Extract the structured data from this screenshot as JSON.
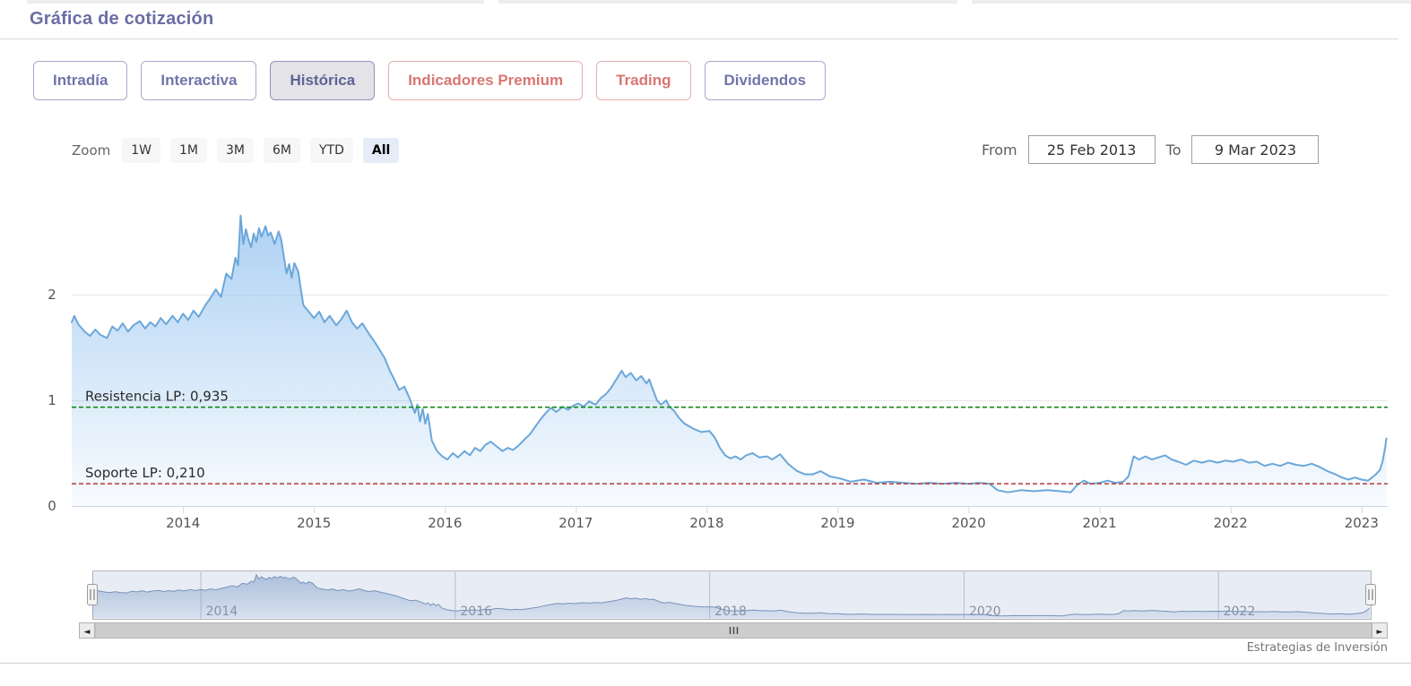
{
  "header": {
    "title": "Gráfica de cotización"
  },
  "tabs": [
    {
      "label": "Intradía"
    },
    {
      "label": "Interactiva"
    },
    {
      "label": "Histórica",
      "active": true
    },
    {
      "label": "Indicadores Premium"
    },
    {
      "label": "Trading"
    },
    {
      "label": "Dividendos"
    }
  ],
  "range_selector": {
    "zoom_label": "Zoom",
    "buttons": [
      {
        "label": "1W"
      },
      {
        "label": "1M"
      },
      {
        "label": "3M"
      },
      {
        "label": "6M"
      },
      {
        "label": "YTD"
      },
      {
        "label": "All",
        "active": true
      }
    ],
    "from_label": "From",
    "from_value": "25 Feb 2013",
    "to_label": "To",
    "to_value": "9 Mar 2023"
  },
  "chart_data": {
    "type": "area",
    "title": "",
    "xlabel": "",
    "ylabel": "",
    "xlim": [
      2013.15,
      2023.2
    ],
    "ylim": [
      0,
      3.01
    ],
    "x_ticks": [
      2014,
      2015,
      2016,
      2017,
      2018,
      2019,
      2020,
      2021,
      2022,
      2023
    ],
    "y_ticks": [
      0,
      1,
      2
    ],
    "grid": "horizontal",
    "legend": "none",
    "line_color": "#6ba7da",
    "fill_color": "#7cb5ec",
    "plot_lines": [
      {
        "label": "Resistencia LP: 0,935",
        "value": 0.935,
        "color": "#0f8b0f",
        "style": "dashed"
      },
      {
        "label": "Soporte LP: 0,210",
        "value": 0.21,
        "color": "#b84848",
        "style": "dashed"
      }
    ],
    "points": [
      [
        2013.15,
        1.74
      ],
      [
        2013.17,
        1.8
      ],
      [
        2013.2,
        1.72
      ],
      [
        2013.25,
        1.65
      ],
      [
        2013.29,
        1.61
      ],
      [
        2013.33,
        1.67
      ],
      [
        2013.37,
        1.62
      ],
      [
        2013.42,
        1.59
      ],
      [
        2013.46,
        1.7
      ],
      [
        2013.5,
        1.66
      ],
      [
        2013.54,
        1.73
      ],
      [
        2013.58,
        1.65
      ],
      [
        2013.62,
        1.71
      ],
      [
        2013.67,
        1.75
      ],
      [
        2013.71,
        1.68
      ],
      [
        2013.75,
        1.74
      ],
      [
        2013.79,
        1.7
      ],
      [
        2013.83,
        1.78
      ],
      [
        2013.87,
        1.72
      ],
      [
        2013.92,
        1.8
      ],
      [
        2013.96,
        1.74
      ],
      [
        2014.0,
        1.82
      ],
      [
        2014.04,
        1.76
      ],
      [
        2014.08,
        1.85
      ],
      [
        2014.12,
        1.79
      ],
      [
        2014.17,
        1.9
      ],
      [
        2014.21,
        1.97
      ],
      [
        2014.25,
        2.05
      ],
      [
        2014.29,
        1.98
      ],
      [
        2014.33,
        2.2
      ],
      [
        2014.37,
        2.15
      ],
      [
        2014.4,
        2.35
      ],
      [
        2014.42,
        2.28
      ],
      [
        2014.44,
        2.75
      ],
      [
        2014.46,
        2.48
      ],
      [
        2014.48,
        2.62
      ],
      [
        2014.5,
        2.52
      ],
      [
        2014.52,
        2.45
      ],
      [
        2014.54,
        2.58
      ],
      [
        2014.56,
        2.5
      ],
      [
        2014.58,
        2.63
      ],
      [
        2014.6,
        2.55
      ],
      [
        2014.63,
        2.65
      ],
      [
        2014.65,
        2.56
      ],
      [
        2014.67,
        2.59
      ],
      [
        2014.7,
        2.48
      ],
      [
        2014.73,
        2.6
      ],
      [
        2014.75,
        2.52
      ],
      [
        2014.79,
        2.2
      ],
      [
        2014.81,
        2.29
      ],
      [
        2014.83,
        2.16
      ],
      [
        2014.85,
        2.3
      ],
      [
        2014.88,
        2.22
      ],
      [
        2014.9,
        2.05
      ],
      [
        2014.92,
        1.9
      ],
      [
        2014.96,
        1.84
      ],
      [
        2015.0,
        1.78
      ],
      [
        2015.04,
        1.84
      ],
      [
        2015.08,
        1.74
      ],
      [
        2015.12,
        1.8
      ],
      [
        2015.17,
        1.71
      ],
      [
        2015.21,
        1.77
      ],
      [
        2015.25,
        1.85
      ],
      [
        2015.29,
        1.74
      ],
      [
        2015.33,
        1.68
      ],
      [
        2015.37,
        1.73
      ],
      [
        2015.42,
        1.63
      ],
      [
        2015.46,
        1.56
      ],
      [
        2015.5,
        1.48
      ],
      [
        2015.54,
        1.4
      ],
      [
        2015.58,
        1.28
      ],
      [
        2015.62,
        1.18
      ],
      [
        2015.65,
        1.1
      ],
      [
        2015.69,
        1.13
      ],
      [
        2015.73,
        1.02
      ],
      [
        2015.77,
        0.88
      ],
      [
        2015.79,
        0.96
      ],
      [
        2015.81,
        0.8
      ],
      [
        2015.83,
        0.92
      ],
      [
        2015.85,
        0.78
      ],
      [
        2015.87,
        0.87
      ],
      [
        2015.9,
        0.62
      ],
      [
        2015.94,
        0.52
      ],
      [
        2015.98,
        0.47
      ],
      [
        2016.02,
        0.44
      ],
      [
        2016.06,
        0.5
      ],
      [
        2016.1,
        0.46
      ],
      [
        2016.15,
        0.52
      ],
      [
        2016.19,
        0.48
      ],
      [
        2016.23,
        0.55
      ],
      [
        2016.27,
        0.52
      ],
      [
        2016.31,
        0.58
      ],
      [
        2016.35,
        0.61
      ],
      [
        2016.4,
        0.56
      ],
      [
        2016.44,
        0.52
      ],
      [
        2016.48,
        0.55
      ],
      [
        2016.52,
        0.53
      ],
      [
        2016.56,
        0.57
      ],
      [
        2016.6,
        0.62
      ],
      [
        2016.65,
        0.68
      ],
      [
        2016.69,
        0.75
      ],
      [
        2016.73,
        0.82
      ],
      [
        2016.77,
        0.88
      ],
      [
        2016.81,
        0.93
      ],
      [
        2016.85,
        0.89
      ],
      [
        2016.9,
        0.94
      ],
      [
        2016.94,
        0.91
      ],
      [
        2016.98,
        0.95
      ],
      [
        2017.02,
        0.97
      ],
      [
        2017.06,
        0.94
      ],
      [
        2017.1,
        0.99
      ],
      [
        2017.15,
        0.96
      ],
      [
        2017.19,
        1.02
      ],
      [
        2017.23,
        1.06
      ],
      [
        2017.27,
        1.12
      ],
      [
        2017.31,
        1.2
      ],
      [
        2017.35,
        1.28
      ],
      [
        2017.38,
        1.22
      ],
      [
        2017.42,
        1.26
      ],
      [
        2017.46,
        1.19
      ],
      [
        2017.5,
        1.23
      ],
      [
        2017.54,
        1.16
      ],
      [
        2017.56,
        1.2
      ],
      [
        2017.58,
        1.13
      ],
      [
        2017.62,
        1.0
      ],
      [
        2017.65,
        0.96
      ],
      [
        2017.69,
        1.0
      ],
      [
        2017.71,
        0.95
      ],
      [
        2017.75,
        0.9
      ],
      [
        2017.79,
        0.83
      ],
      [
        2017.83,
        0.78
      ],
      [
        2017.9,
        0.73
      ],
      [
        2017.96,
        0.7
      ],
      [
        2018.02,
        0.71
      ],
      [
        2018.06,
        0.65
      ],
      [
        2018.1,
        0.55
      ],
      [
        2018.14,
        0.48
      ],
      [
        2018.18,
        0.45
      ],
      [
        2018.22,
        0.47
      ],
      [
        2018.26,
        0.44
      ],
      [
        2018.3,
        0.48
      ],
      [
        2018.35,
        0.5
      ],
      [
        2018.4,
        0.46
      ],
      [
        2018.46,
        0.47
      ],
      [
        2018.5,
        0.44
      ],
      [
        2018.56,
        0.49
      ],
      [
        2018.62,
        0.4
      ],
      [
        2018.69,
        0.33
      ],
      [
        2018.75,
        0.3
      ],
      [
        2018.81,
        0.3
      ],
      [
        2018.87,
        0.33
      ],
      [
        2018.94,
        0.28
      ],
      [
        2019.02,
        0.26
      ],
      [
        2019.1,
        0.23
      ],
      [
        2019.2,
        0.25
      ],
      [
        2019.3,
        0.22
      ],
      [
        2019.4,
        0.23
      ],
      [
        2019.5,
        0.22
      ],
      [
        2019.6,
        0.21
      ],
      [
        2019.7,
        0.22
      ],
      [
        2019.8,
        0.21
      ],
      [
        2019.9,
        0.22
      ],
      [
        2020.0,
        0.21
      ],
      [
        2020.08,
        0.22
      ],
      [
        2020.16,
        0.21
      ],
      [
        2020.22,
        0.15
      ],
      [
        2020.3,
        0.13
      ],
      [
        2020.4,
        0.15
      ],
      [
        2020.5,
        0.14
      ],
      [
        2020.6,
        0.15
      ],
      [
        2020.7,
        0.14
      ],
      [
        2020.78,
        0.13
      ],
      [
        2020.83,
        0.2
      ],
      [
        2020.88,
        0.24
      ],
      [
        2020.93,
        0.21
      ],
      [
        2021.0,
        0.22
      ],
      [
        2021.06,
        0.24
      ],
      [
        2021.12,
        0.22
      ],
      [
        2021.18,
        0.23
      ],
      [
        2021.22,
        0.28
      ],
      [
        2021.26,
        0.47
      ],
      [
        2021.3,
        0.44
      ],
      [
        2021.35,
        0.47
      ],
      [
        2021.4,
        0.44
      ],
      [
        2021.45,
        0.46
      ],
      [
        2021.5,
        0.48
      ],
      [
        2021.55,
        0.44
      ],
      [
        2021.6,
        0.42
      ],
      [
        2021.66,
        0.39
      ],
      [
        2021.72,
        0.43
      ],
      [
        2021.78,
        0.41
      ],
      [
        2021.84,
        0.43
      ],
      [
        2021.9,
        0.41
      ],
      [
        2021.96,
        0.43
      ],
      [
        2022.02,
        0.42
      ],
      [
        2022.08,
        0.44
      ],
      [
        2022.14,
        0.41
      ],
      [
        2022.2,
        0.42
      ],
      [
        2022.26,
        0.38
      ],
      [
        2022.32,
        0.4
      ],
      [
        2022.38,
        0.38
      ],
      [
        2022.44,
        0.41
      ],
      [
        2022.5,
        0.39
      ],
      [
        2022.56,
        0.38
      ],
      [
        2022.62,
        0.4
      ],
      [
        2022.68,
        0.37
      ],
      [
        2022.74,
        0.33
      ],
      [
        2022.8,
        0.3
      ],
      [
        2022.85,
        0.27
      ],
      [
        2022.9,
        0.25
      ],
      [
        2022.95,
        0.27
      ],
      [
        2023.0,
        0.25
      ],
      [
        2023.05,
        0.24
      ],
      [
        2023.08,
        0.27
      ],
      [
        2023.11,
        0.3
      ],
      [
        2023.14,
        0.34
      ],
      [
        2023.16,
        0.42
      ],
      [
        2023.18,
        0.55
      ],
      [
        2023.19,
        0.64
      ]
    ]
  },
  "navigator": {
    "year_labels": [
      "2014",
      "2016",
      "2018",
      "2020",
      "2022"
    ],
    "year_values": [
      2014,
      2016,
      2018,
      2020,
      2022
    ],
    "ylim": [
      0,
      2.85
    ]
  },
  "scrollbar": {
    "left_arrow": "◄",
    "right_arrow": "►",
    "grip_icon": "grip-bars"
  },
  "watermark": "Estrategias de Inversión",
  "colors": {
    "accent_purple": "#7274aa",
    "accent_red": "#d97672",
    "active_tab_bg": "#e3e3e8",
    "active_pill_bg": "#e6ecf7",
    "resistance_green": "#0f8b0f",
    "support_red": "#b84848",
    "series_blue": "#6ba7da"
  }
}
